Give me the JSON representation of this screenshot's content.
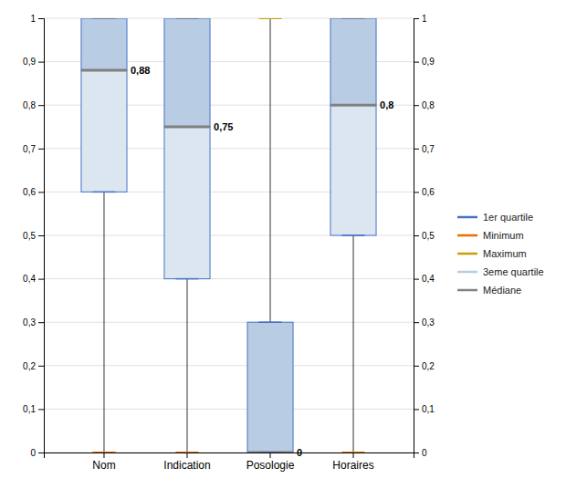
{
  "chart_data": {
    "type": "box",
    "categories": [
      "Nom",
      "Indication",
      "Posologie",
      "Horaires"
    ],
    "minimum": [
      0.0,
      0.0,
      0.0,
      0.0
    ],
    "q1": [
      0.6,
      0.4,
      0.0,
      0.5
    ],
    "median": [
      0.88,
      0.75,
      0.0,
      0.8
    ],
    "q3": [
      1.0,
      1.0,
      0.3,
      1.0
    ],
    "maximum": [
      1.0,
      1.0,
      1.0,
      1.0
    ],
    "median_labels": [
      "0,88",
      "0,75",
      "0",
      "0,8"
    ],
    "data_labels": true,
    "color": "#333333",
    "colors": [
      "#dce6f1",
      "#b8cce4"
    ],
    "legend": "right",
    "legend_entries": [
      {
        "name": "1er quartile",
        "color": "#4472c4"
      },
      {
        "name": "Minimum",
        "color": "#e87000"
      },
      {
        "name": "Maximum",
        "color": "#c8a000"
      },
      {
        "name": "3eme quartile",
        "color": "#b8cce4"
      },
      {
        "name": "Médiane",
        "color": "#808080"
      }
    ],
    "ylim": [
      0,
      1
    ],
    "yticks": [
      0,
      {
        "value": 0.1,
        "label": "0,1"
      },
      {
        "value": 0.2,
        "label": "0,2"
      },
      {
        "value": 0.3,
        "label": "0,3"
      },
      {
        "value": 0.4,
        "label": "0,4"
      },
      {
        "value": 0.5,
        "label": "0,5"
      },
      {
        "value": 0.6,
        "label": "0,6"
      },
      {
        "value": 0.7,
        "label": "0,7"
      },
      {
        "value": 0.8,
        "label": "0,8"
      },
      {
        "value": 0.9,
        "label": "0,9"
      },
      1
    ],
    "y2lim": [
      0,
      1
    ],
    "y2ticks": [
      0,
      {
        "value": 0.1,
        "label": "0,1"
      },
      {
        "value": 0.2,
        "label": "0,2"
      },
      {
        "value": 0.3,
        "label": "0,3"
      },
      {
        "value": 0.4,
        "label": "0,4"
      },
      {
        "value": 0.5,
        "label": "0,5"
      },
      {
        "value": 0.6,
        "label": "0,6"
      },
      {
        "value": 0.7,
        "label": "0,7"
      },
      {
        "value": 0.8,
        "label": "0,8"
      },
      {
        "value": 0.9,
        "label": "0,9"
      },
      1
    ],
    "grid": true
  }
}
